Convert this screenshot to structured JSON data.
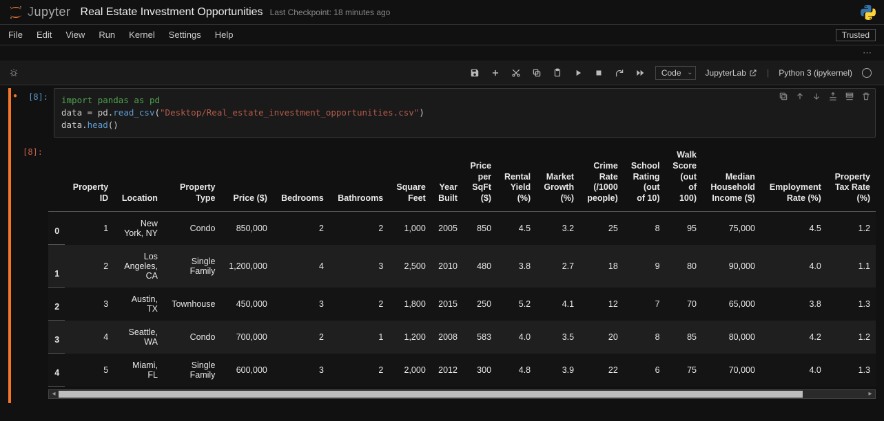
{
  "header": {
    "logo_text_prefix": "J",
    "logo_text_rest": "upyter",
    "title": "Real Estate Investment Opportunities",
    "checkpoint": "Last Checkpoint: 18 minutes ago"
  },
  "menubar": {
    "items": [
      "File",
      "Edit",
      "View",
      "Run",
      "Kernel",
      "Settings",
      "Help"
    ],
    "trusted": "Trusted"
  },
  "toolbar": {
    "celltype": "Code",
    "jupyterlab": "JupyterLab",
    "kernel": "Python 3 (ipykernel)"
  },
  "cells": {
    "code": {
      "prompt": "[8]:",
      "line1_kw_import": "import",
      "line1_mod_pandas": "pandas",
      "line1_kw_as": "as",
      "line1_mod_pd": "pd",
      "line2_var": "data",
      "line2_eq": " = ",
      "line2_pd": "pd",
      "line2_dot": ".",
      "line2_read": "read_csv",
      "line2_paren_o": "(",
      "line2_str": "\"Desktop/Real_estate_investment_opportunities.csv\"",
      "line2_paren_c": ")",
      "line3_var": "data",
      "line3_dot": ".",
      "line3_head": "head",
      "line3_paren": "()"
    },
    "output": {
      "prompt": "[8]:"
    }
  },
  "table": {
    "columns": [
      "",
      "Property ID",
      "Location",
      "Property Type",
      "Price ($)",
      "Bedrooms",
      "Bathrooms",
      "Square Feet",
      "Year Built",
      "Price per SqFt ($)",
      "Rental Yield (%)",
      "Market Growth (%)",
      "Crime Rate (/1000 people)",
      "School Rating (out of 10)",
      "Walk Score (out of 100)",
      "Median Household Income ($)",
      "Employment Rate (%)",
      "Property Tax Rate (%)"
    ],
    "col_html": [
      "",
      "Property<br>ID",
      "Location",
      "Property<br>Type",
      "Price ($)",
      "Bedrooms",
      "Bathrooms",
      "Square<br>Feet",
      "Year<br>Built",
      "Price<br>per<br>SqFt<br>($)",
      "Rental<br>Yield<br>(%)",
      "Market<br>Growth<br>(%)",
      "Crime<br>Rate<br>(/1000<br>people)",
      "School<br>Rating<br>(out<br>of 10)",
      "Walk<br>Score<br>(out<br>of<br>100)",
      "Median<br>Household<br>Income ($)",
      "Employment<br>Rate (%)",
      "Property<br>Tax Rate<br>(%)"
    ],
    "rows": [
      {
        "idx": "0",
        "cells": [
          "1",
          "New York, NY",
          "Condo",
          "850,000",
          "2",
          "2",
          "1,000",
          "2005",
          "850",
          "4.5",
          "3.2",
          "25",
          "8",
          "95",
          "75,000",
          "4.5",
          "1.2"
        ]
      },
      {
        "idx": "1",
        "cells": [
          "2",
          "Los Angeles, CA",
          "Single Family",
          "1,200,000",
          "4",
          "3",
          "2,500",
          "2010",
          "480",
          "3.8",
          "2.7",
          "18",
          "9",
          "80",
          "90,000",
          "4.0",
          "1.1"
        ]
      },
      {
        "idx": "2",
        "cells": [
          "3",
          "Austin, TX",
          "Townhouse",
          "450,000",
          "3",
          "2",
          "1,800",
          "2015",
          "250",
          "5.2",
          "4.1",
          "12",
          "7",
          "70",
          "65,000",
          "3.8",
          "1.3"
        ]
      },
      {
        "idx": "3",
        "cells": [
          "4",
          "Seattle, WA",
          "Condo",
          "700,000",
          "2",
          "1",
          "1,200",
          "2008",
          "583",
          "4.0",
          "3.5",
          "20",
          "8",
          "85",
          "80,000",
          "4.2",
          "1.2"
        ]
      },
      {
        "idx": "4",
        "cells": [
          "5",
          "Miami, FL",
          "Single Family",
          "600,000",
          "3",
          "2",
          "2,000",
          "2012",
          "300",
          "4.8",
          "3.9",
          "22",
          "6",
          "75",
          "70,000",
          "4.0",
          "1.3"
        ]
      }
    ],
    "loc_html": [
      "New<br>York, NY",
      "Los<br>Angeles,<br>CA",
      "Austin,<br>TX",
      "Seattle,<br>WA",
      "Miami,<br>FL"
    ],
    "type_html": [
      "Condo",
      "Single<br>Family",
      "Townhouse",
      "Condo",
      "Single<br>Family"
    ]
  },
  "colors": {
    "accent": "#f37726",
    "prompt_in": "#5e9bd2",
    "prompt_out": "#c8604f",
    "bg": "#111111",
    "row_alt": "#1f1f1f"
  }
}
